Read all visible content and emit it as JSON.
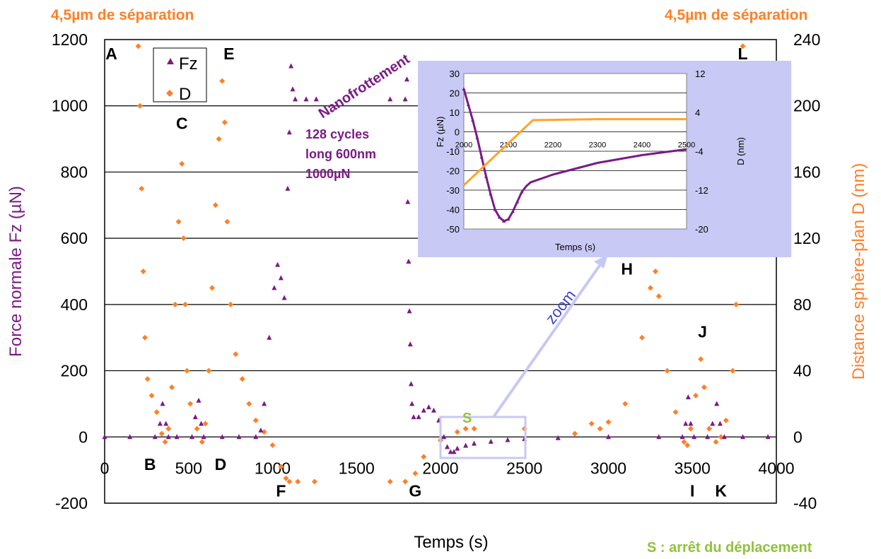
{
  "top_notes": {
    "left": "4,5µm de séparation",
    "right": "4,5µm de séparation"
  },
  "bottom_note": "S : arrêt du déplacement",
  "annotations": {
    "nanofrottement": "Nanofrottement",
    "cycles": [
      "128 cycles",
      "long 600nm",
      "1000µN"
    ],
    "zoom": "zoom",
    "S": "S"
  },
  "colors": {
    "fz": "#7a1a86",
    "d": "#ff7f27",
    "s": "#8fc33a",
    "zoom": "#c8c8f4",
    "inset_bg": "#c9c9f5"
  },
  "chart_data": [
    {
      "type": "scatter",
      "xlabel": "Temps (s)",
      "ylabel": "Force normale Fz (µN)",
      "y2label": "Distance sphère-plan D (nm)",
      "xlim": [
        0,
        4000
      ],
      "ylim": [
        -200,
        1200
      ],
      "y2lim": [
        -40,
        240
      ],
      "xticks": [
        0,
        500,
        1000,
        1500,
        2000,
        2500,
        3000,
        3500,
        4000
      ],
      "yticks": [
        -200,
        0,
        200,
        400,
        600,
        800,
        1000,
        1200
      ],
      "y2ticks": [
        -40,
        0,
        40,
        80,
        120,
        160,
        200,
        240
      ],
      "grid": true,
      "legend_position": "top-left",
      "series": [
        {
          "name": "Fz",
          "axis": "left",
          "marker": "triangle",
          "color": "#7a1a86",
          "points": [
            [
              0,
              0
            ],
            [
              150,
              0
            ],
            [
              300,
              0
            ],
            [
              330,
              40
            ],
            [
              345,
              100
            ],
            [
              365,
              40
            ],
            [
              380,
              0
            ],
            [
              430,
              0
            ],
            [
              520,
              0
            ],
            [
              540,
              60
            ],
            [
              560,
              110
            ],
            [
              575,
              40
            ],
            [
              590,
              0
            ],
            [
              700,
              0
            ],
            [
              800,
              0
            ],
            [
              900,
              0
            ],
            [
              930,
              20
            ],
            [
              950,
              100
            ],
            [
              980,
              300
            ],
            [
              1010,
              450
            ],
            [
              1030,
              520
            ],
            [
              1050,
              480
            ],
            [
              1070,
              420
            ],
            [
              1090,
              750
            ],
            [
              1100,
              920
            ],
            [
              1110,
              1120
            ],
            [
              1120,
              1050
            ],
            [
              1135,
              1020
            ],
            [
              1200,
              1020
            ],
            [
              1260,
              1020
            ],
            [
              1700,
              1020
            ],
            [
              1790,
              1020
            ],
            [
              1800,
              1080
            ],
            [
              1805,
              710
            ],
            [
              1810,
              530
            ],
            [
              1815,
              380
            ],
            [
              1820,
              280
            ],
            [
              1825,
              160
            ],
            [
              1830,
              100
            ],
            [
              1840,
              60
            ],
            [
              1870,
              60
            ],
            [
              1900,
              80
            ],
            [
              1930,
              90
            ],
            [
              1960,
              80
            ],
            [
              1990,
              50
            ],
            [
              2020,
              0
            ],
            [
              2040,
              -30
            ],
            [
              2060,
              -45
            ],
            [
              2080,
              -45
            ],
            [
              2100,
              -35
            ],
            [
              2150,
              -26
            ],
            [
              2200,
              -20
            ],
            [
              2300,
              -14
            ],
            [
              2400,
              -9
            ],
            [
              2500,
              -6
            ],
            [
              2700,
              -3
            ],
            [
              3000,
              0
            ],
            [
              3300,
              0
            ],
            [
              3440,
              0
            ],
            [
              3460,
              40
            ],
            [
              3475,
              120
            ],
            [
              3490,
              40
            ],
            [
              3510,
              0
            ],
            [
              3590,
              0
            ],
            [
              3620,
              40
            ],
            [
              3645,
              100
            ],
            [
              3665,
              40
            ],
            [
              3690,
              0
            ],
            [
              3800,
              0
            ],
            [
              3950,
              0
            ]
          ]
        },
        {
          "name": "D",
          "axis": "right",
          "marker": "diamond",
          "color": "#ff7f27",
          "points": [
            [
              200,
              236
            ],
            [
              210,
              200
            ],
            [
              220,
              150
            ],
            [
              230,
              100
            ],
            [
              240,
              60
            ],
            [
              255,
              35
            ],
            [
              280,
              25
            ],
            [
              310,
              15
            ],
            [
              340,
              2
            ],
            [
              360,
              -3
            ],
            [
              380,
              5
            ],
            [
              400,
              30
            ],
            [
              420,
              80
            ],
            [
              440,
              130
            ],
            [
              460,
              165
            ],
            [
              470,
              120
            ],
            [
              480,
              80
            ],
            [
              490,
              40
            ],
            [
              510,
              20
            ],
            [
              550,
              5
            ],
            [
              580,
              -3
            ],
            [
              600,
              8
            ],
            [
              620,
              40
            ],
            [
              640,
              90
            ],
            [
              660,
              140
            ],
            [
              680,
              180
            ],
            [
              700,
              215
            ],
            [
              715,
              190
            ],
            [
              730,
              130
            ],
            [
              750,
              80
            ],
            [
              780,
              50
            ],
            [
              820,
              35
            ],
            [
              860,
              20
            ],
            [
              900,
              10
            ],
            [
              950,
              3
            ],
            [
              1000,
              -5
            ],
            [
              1050,
              -18
            ],
            [
              1080,
              -25
            ],
            [
              1100,
              -27
            ],
            [
              1150,
              -27
            ],
            [
              1250,
              -27
            ],
            [
              1700,
              -27
            ],
            [
              1790,
              -27
            ],
            [
              1850,
              -22
            ],
            [
              1900,
              -12
            ],
            [
              2000,
              -2
            ],
            [
              2100,
              3
            ],
            [
              2150,
              5
            ],
            [
              2200,
              5
            ],
            [
              2500,
              5
            ],
            [
              2800,
              2
            ],
            [
              2900,
              8
            ],
            [
              2950,
              5
            ],
            [
              3000,
              9
            ],
            [
              3100,
              20
            ],
            [
              3200,
              60
            ],
            [
              3250,
              90
            ],
            [
              3280,
              100
            ],
            [
              3300,
              85
            ],
            [
              3350,
              40
            ],
            [
              3400,
              15
            ],
            [
              3450,
              -3
            ],
            [
              3470,
              -5
            ],
            [
              3490,
              5
            ],
            [
              3520,
              25
            ],
            [
              3550,
              47
            ],
            [
              3570,
              30
            ],
            [
              3600,
              5
            ],
            [
              3640,
              -3
            ],
            [
              3670,
              0
            ],
            [
              3700,
              10
            ],
            [
              3740,
              40
            ],
            [
              3760,
              80
            ],
            [
              3780,
              160
            ],
            [
              3800,
              236
            ]
          ]
        }
      ],
      "point_labels": [
        {
          "text": "A",
          "x": 40,
          "y": 1140
        },
        {
          "text": "E",
          "x": 740,
          "y": 1140
        },
        {
          "text": "C",
          "x": 460,
          "y": 930
        },
        {
          "text": "B",
          "x": 270,
          "y": -100
        },
        {
          "text": "D",
          "x": 690,
          "y": -100
        },
        {
          "text": "F",
          "x": 1050,
          "y": -180
        },
        {
          "text": "G",
          "x": 1850,
          "y": -180
        },
        {
          "text": "H",
          "x": 3110,
          "y": 490
        },
        {
          "text": "I",
          "x": 3500,
          "y": -180
        },
        {
          "text": "J",
          "x": 3560,
          "y": 300
        },
        {
          "text": "K",
          "x": 3670,
          "y": -180
        },
        {
          "text": "L",
          "x": 3800,
          "y": 1140
        }
      ]
    },
    {
      "type": "line",
      "xlabel": "Temps (s)",
      "ylabel": "Fz (µN)",
      "y2label": "D (nm)",
      "xlim": [
        2000,
        2500
      ],
      "ylim": [
        -50,
        30
      ],
      "y2lim": [
        -20,
        12
      ],
      "xticks": [
        2000,
        2100,
        2200,
        2300,
        2400,
        2500
      ],
      "yticks": [
        -50,
        -40,
        -30,
        -20,
        -10,
        0,
        10,
        20,
        30
      ],
      "y2ticks": [
        -20,
        -12,
        -4,
        4,
        12
      ],
      "grid": true,
      "series": [
        {
          "name": "Fz",
          "axis": "left",
          "color": "#7a1a86",
          "points": [
            [
              2000,
              22
            ],
            [
              2010,
              14
            ],
            [
              2020,
              6
            ],
            [
              2030,
              -3
            ],
            [
              2040,
              -13
            ],
            [
              2050,
              -23
            ],
            [
              2060,
              -32
            ],
            [
              2070,
              -40
            ],
            [
              2080,
              -44
            ],
            [
              2090,
              -46
            ],
            [
              2100,
              -45
            ],
            [
              2110,
              -41
            ],
            [
              2120,
              -36
            ],
            [
              2130,
              -31
            ],
            [
              2140,
              -28
            ],
            [
              2150,
              -26
            ],
            [
              2175,
              -24
            ],
            [
              2200,
              -22
            ],
            [
              2250,
              -19
            ],
            [
              2300,
              -16
            ],
            [
              2350,
              -14
            ],
            [
              2400,
              -12
            ],
            [
              2450,
              -10.5
            ],
            [
              2500,
              -9
            ]
          ]
        },
        {
          "name": "D",
          "axis": "right",
          "color": "#ffa42a",
          "points": [
            [
              2000,
              -11
            ],
            [
              2155,
              2.4
            ],
            [
              2300,
              2.6
            ],
            [
              2500,
              2.6
            ]
          ]
        }
      ]
    }
  ]
}
